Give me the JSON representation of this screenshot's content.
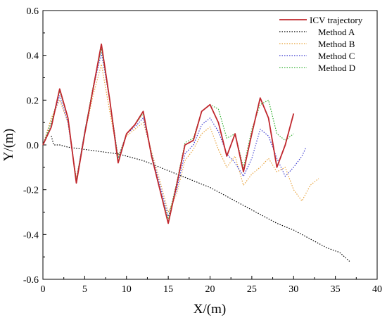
{
  "chart_data": {
    "type": "line",
    "title": "",
    "xlabel": "X/(m)",
    "ylabel": "Y/(m)",
    "xlim": [
      0,
      40
    ],
    "ylim": [
      -0.6,
      0.6
    ],
    "xticks": [
      "0",
      "5",
      "10",
      "15",
      "20",
      "25",
      "30",
      "35",
      "40"
    ],
    "yticks": [
      "-0.6",
      "-0.4",
      "-0.2",
      "0.0",
      "0.2",
      "0.4",
      "0.6"
    ],
    "grid": false,
    "legend_position": "top-right",
    "series": [
      {
        "name": "ICV trajectory",
        "color": "#c0272d",
        "style": "solid",
        "points": [
          [
            0,
            0
          ],
          [
            1,
            0.08
          ],
          [
            2,
            0.25
          ],
          [
            3,
            0.12
          ],
          [
            4,
            -0.17
          ],
          [
            5,
            0.05
          ],
          [
            6,
            0.25
          ],
          [
            7,
            0.45
          ],
          [
            8,
            0.2
          ],
          [
            9,
            -0.08
          ],
          [
            10,
            0.05
          ],
          [
            11,
            0.09
          ],
          [
            12,
            0.15
          ],
          [
            13,
            -0.05
          ],
          [
            14,
            -0.2
          ],
          [
            15,
            -0.35
          ],
          [
            16,
            -0.18
          ],
          [
            17,
            0
          ],
          [
            18,
            0.02
          ],
          [
            19,
            0.15
          ],
          [
            20,
            0.18
          ],
          [
            21,
            0.1
          ],
          [
            22,
            -0.05
          ],
          [
            23,
            0.05
          ],
          [
            24,
            -0.12
          ],
          [
            25,
            0.05
          ],
          [
            26,
            0.21
          ],
          [
            27,
            0.12
          ],
          [
            28,
            -0.1
          ],
          [
            29,
            0
          ],
          [
            30,
            0.14
          ]
        ]
      },
      {
        "name": "Method A",
        "color": "#000000",
        "style": "dotted",
        "points": [
          [
            1,
            0.04
          ],
          [
            1.3,
            0
          ],
          [
            2,
            0
          ],
          [
            3,
            -0.01
          ],
          [
            5,
            -0.02
          ],
          [
            7,
            -0.03
          ],
          [
            9,
            -0.04
          ],
          [
            10,
            -0.05
          ],
          [
            12,
            -0.07
          ],
          [
            14,
            -0.1
          ],
          [
            16,
            -0.13
          ],
          [
            18,
            -0.16
          ],
          [
            20,
            -0.19
          ],
          [
            22,
            -0.23
          ],
          [
            24,
            -0.27
          ],
          [
            26,
            -0.31
          ],
          [
            28,
            -0.35
          ],
          [
            30,
            -0.38
          ],
          [
            32,
            -0.42
          ],
          [
            34,
            -0.46
          ],
          [
            35.5,
            -0.48
          ],
          [
            36.7,
            -0.52
          ]
        ]
      },
      {
        "name": "Method B",
        "color": "#e8a23a",
        "style": "dotted",
        "points": [
          [
            0,
            0
          ],
          [
            1,
            0.12
          ],
          [
            2,
            0.2
          ],
          [
            3,
            0.1
          ],
          [
            4,
            -0.15
          ],
          [
            5,
            0.05
          ],
          [
            6,
            0.22
          ],
          [
            7,
            0.36
          ],
          [
            8,
            0.15
          ],
          [
            9,
            -0.05
          ],
          [
            10,
            0.04
          ],
          [
            11,
            0.07
          ],
          [
            12,
            0.1
          ],
          [
            13,
            -0.03
          ],
          [
            14,
            -0.16
          ],
          [
            15,
            -0.3
          ],
          [
            16,
            -0.22
          ],
          [
            17,
            -0.07
          ],
          [
            18,
            -0.02
          ],
          [
            19,
            0.05
          ],
          [
            20,
            0.08
          ],
          [
            21,
            -0.02
          ],
          [
            22,
            -0.1
          ],
          [
            23,
            -0.05
          ],
          [
            24,
            -0.18
          ],
          [
            25,
            -0.13
          ],
          [
            26,
            -0.1
          ],
          [
            27,
            -0.06
          ],
          [
            28,
            -0.12
          ],
          [
            29,
            -0.1
          ],
          [
            30,
            -0.2
          ],
          [
            31,
            -0.25
          ],
          [
            32,
            -0.18
          ],
          [
            33,
            -0.15
          ]
        ]
      },
      {
        "name": "Method C",
        "color": "#3a3ad0",
        "style": "dotted",
        "points": [
          [
            0,
            0
          ],
          [
            1,
            0.1
          ],
          [
            2,
            0.22
          ],
          [
            3,
            0.1
          ],
          [
            4,
            -0.16
          ],
          [
            5,
            0.06
          ],
          [
            6,
            0.25
          ],
          [
            7,
            0.41
          ],
          [
            8,
            0.2
          ],
          [
            9,
            -0.06
          ],
          [
            10,
            0.05
          ],
          [
            11,
            0.08
          ],
          [
            12,
            0.12
          ],
          [
            13,
            -0.04
          ],
          [
            14,
            -0.18
          ],
          [
            15,
            -0.32
          ],
          [
            16,
            -0.2
          ],
          [
            17,
            -0.04
          ],
          [
            18,
            0
          ],
          [
            19,
            0.09
          ],
          [
            20,
            0.12
          ],
          [
            21,
            0.06
          ],
          [
            22,
            -0.04
          ],
          [
            23,
            -0.08
          ],
          [
            24,
            -0.14
          ],
          [
            25,
            -0.06
          ],
          [
            26,
            0.07
          ],
          [
            27,
            0.04
          ],
          [
            28,
            -0.06
          ],
          [
            29,
            -0.14
          ],
          [
            30,
            -0.1
          ],
          [
            31,
            -0.05
          ],
          [
            31.5,
            -0.01
          ]
        ]
      },
      {
        "name": "Method D",
        "color": "#3ab33a",
        "style": "dotted",
        "points": [
          [
            0,
            0
          ],
          [
            1,
            0.1
          ],
          [
            2,
            0.24
          ],
          [
            3,
            0.12
          ],
          [
            4,
            -0.16
          ],
          [
            5,
            0.06
          ],
          [
            6,
            0.26
          ],
          [
            7,
            0.43
          ],
          [
            8,
            0.2
          ],
          [
            9,
            -0.06
          ],
          [
            10,
            0.05
          ],
          [
            11,
            0.09
          ],
          [
            12,
            0.14
          ],
          [
            13,
            -0.04
          ],
          [
            14,
            -0.2
          ],
          [
            15,
            -0.33
          ],
          [
            16,
            -0.17
          ],
          [
            17,
            0.01
          ],
          [
            18,
            0.03
          ],
          [
            19,
            0.15
          ],
          [
            20,
            0.18
          ],
          [
            21,
            0.16
          ],
          [
            22,
            0.03
          ],
          [
            23,
            0.05
          ],
          [
            24,
            -0.1
          ],
          [
            25,
            0.07
          ],
          [
            26,
            0.18
          ],
          [
            27,
            0.2
          ],
          [
            28,
            0.05
          ],
          [
            29,
            0.02
          ],
          [
            30,
            0.05
          ]
        ]
      }
    ]
  }
}
